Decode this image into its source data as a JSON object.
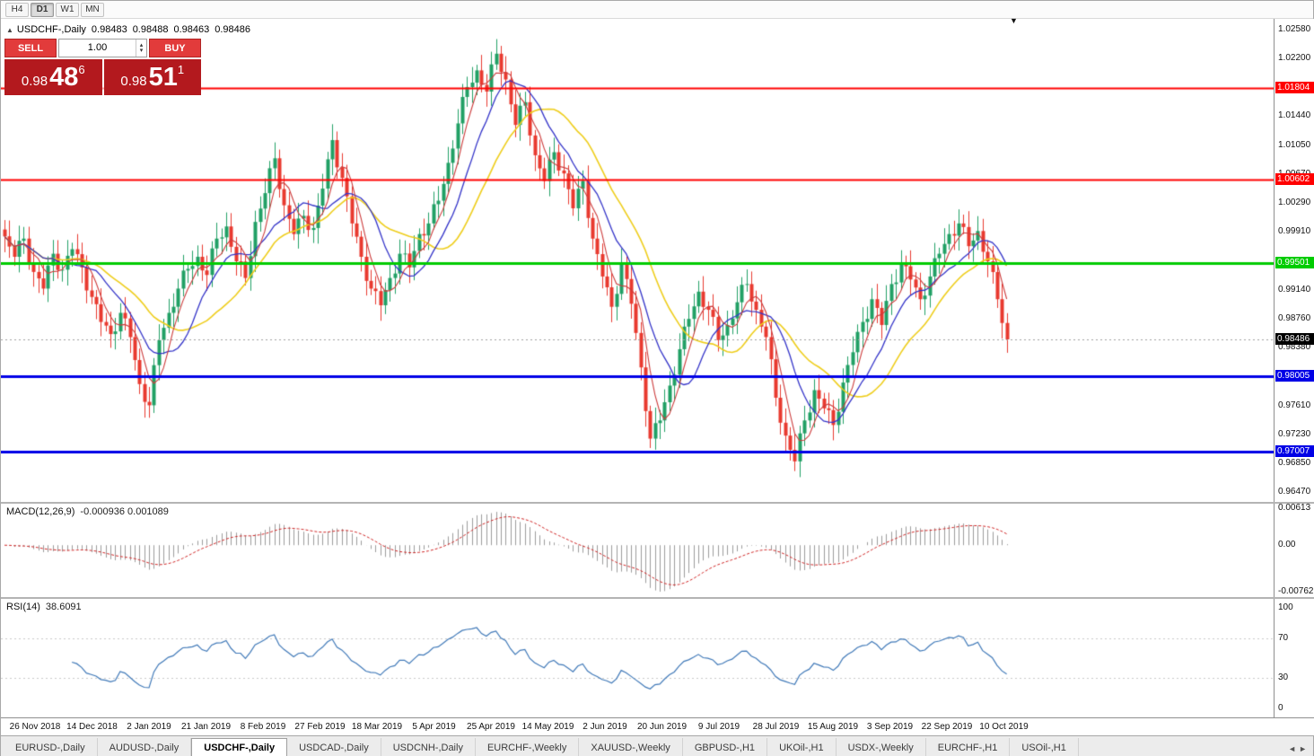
{
  "app": {
    "timeframes": [
      {
        "label": "H4",
        "active": false
      },
      {
        "label": "D1",
        "active": true
      },
      {
        "label": "W1",
        "active": false
      },
      {
        "label": "MN",
        "active": false
      }
    ],
    "tabs": [
      {
        "label": "EURUSD-,Daily",
        "active": false
      },
      {
        "label": "AUDUSD-,Daily",
        "active": false
      },
      {
        "label": "USDCHF-,Daily",
        "active": true
      },
      {
        "label": "USDCAD-,Daily",
        "active": false
      },
      {
        "label": "USDCNH-,Daily",
        "active": false
      },
      {
        "label": "EURCHF-,Weekly",
        "active": false
      },
      {
        "label": "XAUUSD-,Weekly",
        "active": false
      },
      {
        "label": "GBPUSD-,H1",
        "active": false
      },
      {
        "label": "UKOil-,H1",
        "active": false
      },
      {
        "label": "USDX-,Weekly",
        "active": false
      },
      {
        "label": "EURCHF-,H1",
        "active": false
      },
      {
        "label": "USOil-,H1",
        "active": false
      }
    ],
    "tab_scroll_icons": {
      "prev": "◄",
      "next": "►"
    }
  },
  "chart": {
    "info": {
      "collapse_icon": "▲",
      "symbol": "USDCHF-,Daily",
      "open": "0.98483",
      "high": "0.98488",
      "low": "0.98463",
      "close": "0.98486"
    },
    "shift_marker_icon": "▼",
    "trade_panel": {
      "sell_label": "SELL",
      "buy_label": "BUY",
      "volume": "1.00",
      "spin_up_icon": "▴",
      "spin_down_icon": "▾",
      "sell_price": {
        "base": "0.98",
        "big": "48",
        "sup": "6"
      },
      "buy_price": {
        "base": "0.98",
        "big": "51",
        "sup": "1"
      }
    },
    "axis": {
      "min": 0.96345,
      "max": 1.0272,
      "ticks": [
        "1.02580",
        "1.02200",
        "1.01440",
        "1.01050",
        "1.00670",
        "1.00290",
        "0.99910",
        "0.99140",
        "0.98760",
        "0.98380",
        "0.97610",
        "0.97230",
        "0.96850",
        "0.96470"
      ]
    },
    "levels": [
      {
        "price": 1.01804,
        "label": "1.01804",
        "color": "#ff0000",
        "width": 2
      },
      {
        "price": 1.00602,
        "label": "1.00602",
        "color": "#ff0000",
        "width": 2
      },
      {
        "price": 0.99501,
        "label": "0.99501",
        "color": "#00cc00",
        "width": 3
      },
      {
        "price": 0.98005,
        "label": "0.98005",
        "color": "#0000e6",
        "width": 3
      },
      {
        "price": 0.97007,
        "label": "0.97007",
        "color": "#0000e6",
        "width": 3
      }
    ],
    "bid": {
      "price": 0.98486,
      "label": "0.98486",
      "color": "#000000"
    },
    "colors": {
      "up": "#21a065",
      "down": "#e8392f",
      "ma_fast": "#cc3b3b",
      "ma_mid": "#3434c8",
      "ma_slow": "#eecd1b",
      "macd_hist": "#9c9c9c",
      "macd_signal": "#cf2525",
      "rsi": "#4079b8"
    },
    "dates": [
      "26 Nov 2018",
      "14 Dec 2018",
      "2 Jan 2019",
      "21 Jan 2019",
      "8 Feb 2019",
      "27 Feb 2019",
      "18 Mar 2019",
      "5 Apr 2019",
      "25 Apr 2019",
      "14 May 2019",
      "2 Jun 2019",
      "20 Jun 2019",
      "9 Jul 2019",
      "28 Jul 2019",
      "15 Aug 2019",
      "3 Sep 2019",
      "22 Sep 2019",
      "10 Oct 2019"
    ]
  },
  "indicators": {
    "macd": {
      "name": "MACD(12,26,9)",
      "values": "-0.000936 0.001089",
      "scale": {
        "top": "0.00613",
        "zero": "0.00",
        "bottom": "-0.00762"
      },
      "plot_max": 0.0068,
      "plot_min": -0.0085,
      "bar_max": 0.00613,
      "bar_min": -0.00762
    },
    "rsi": {
      "name": "RSI(14)",
      "value": "38.6091",
      "ticks": [
        "100",
        "70",
        "30",
        "0"
      ],
      "levels": [
        70,
        30
      ]
    }
  },
  "chart_data": {
    "type": "candlestick",
    "symbol": "USDCHF",
    "timeframe": "Daily",
    "visible_price_range": [
      0.9647,
      1.0258
    ],
    "closes": [
      0.9985,
      0.9958,
      0.9982,
      0.9938,
      0.9916,
      0.9962,
      0.9941,
      0.9968,
      0.9944,
      0.9905,
      0.9872,
      0.9856,
      0.9884,
      0.9852,
      0.979,
      0.9762,
      0.9848,
      0.9884,
      0.9916,
      0.9942,
      0.9958,
      0.9934,
      0.9982,
      0.9998,
      0.9952,
      0.993,
      1.0004,
      1.0042,
      1.0088,
      1.0026,
      0.9988,
      1.0012,
      0.9996,
      1.0048,
      1.0112,
      1.0062,
      1.0002,
      0.9958,
      0.9916,
      0.9894,
      0.993,
      0.9962,
      0.9944,
      0.9988,
      1.0002,
      1.0032,
      1.0082,
      1.0134,
      1.0182,
      1.0204,
      1.0176,
      1.0226,
      1.0192,
      1.0132,
      1.0162,
      1.0092,
      1.0058,
      1.0096,
      1.0068,
      1.0022,
      1.0058,
      0.9982,
      0.9932,
      0.9892,
      0.9948,
      0.9896,
      0.9812,
      0.9718,
      0.9742,
      0.9788,
      0.9836,
      0.9876,
      0.9912,
      0.9888,
      0.9848,
      0.9868,
      0.9898,
      0.9922,
      0.9888,
      0.9852,
      0.9772,
      0.9722,
      0.9688,
      0.9742,
      0.9782,
      0.9758,
      0.9736,
      0.9792,
      0.9832,
      0.9872,
      0.9902,
      0.9868,
      0.9922,
      0.9948,
      0.9928,
      0.9902,
      0.9932,
      0.9962,
      0.9988,
      1.0002,
      0.9972,
      0.9992,
      0.9952,
      0.9902,
      0.9849
    ]
  }
}
